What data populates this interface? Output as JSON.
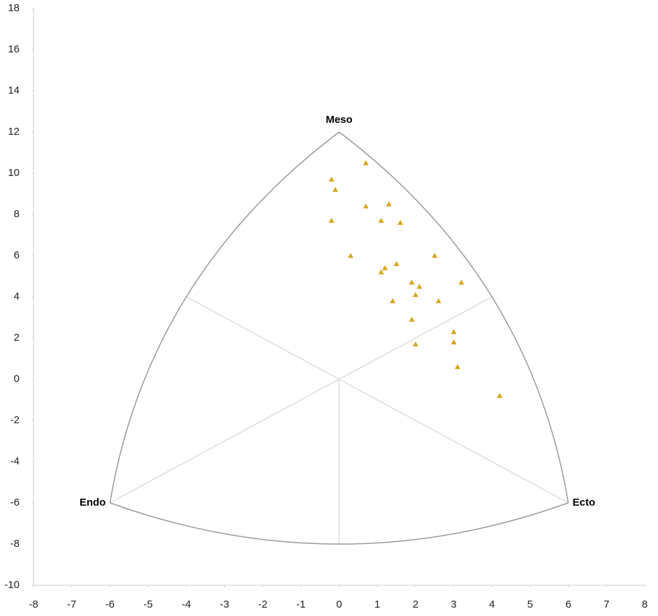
{
  "chart_data": {
    "type": "scatter",
    "x": [
      0.7,
      -0.2,
      -0.1,
      0.7,
      1.3,
      1.1,
      1.6,
      -0.2,
      0.3,
      2.5,
      1.5,
      1.2,
      1.1,
      1.9,
      2.1,
      3.2,
      2.0,
      1.4,
      2.6,
      1.9,
      3.0,
      3.0,
      2.0,
      3.1,
      4.2
    ],
    "values": [
      10.5,
      9.7,
      9.2,
      8.4,
      8.5,
      7.7,
      7.6,
      7.7,
      6.0,
      6.0,
      5.6,
      5.4,
      5.2,
      4.7,
      4.5,
      4.7,
      4.1,
      3.8,
      3.8,
      2.9,
      2.3,
      1.8,
      1.7,
      0.6,
      -0.8
    ],
    "color": "#d9a519",
    "xlim": [
      -8,
      8
    ],
    "xticks": [
      -8,
      -7,
      -6,
      -5,
      -4,
      -3,
      -2,
      -1,
      0,
      1,
      2,
      3,
      4,
      5,
      6,
      7,
      8
    ],
    "ylim": [
      -10,
      18
    ],
    "yticks": [
      -10,
      -8,
      -6,
      -4,
      -2,
      0,
      2,
      4,
      6,
      8,
      10,
      12,
      14,
      16,
      18
    ],
    "annotations": [
      "Meso",
      "Endo",
      "Ecto"
    ]
  }
}
